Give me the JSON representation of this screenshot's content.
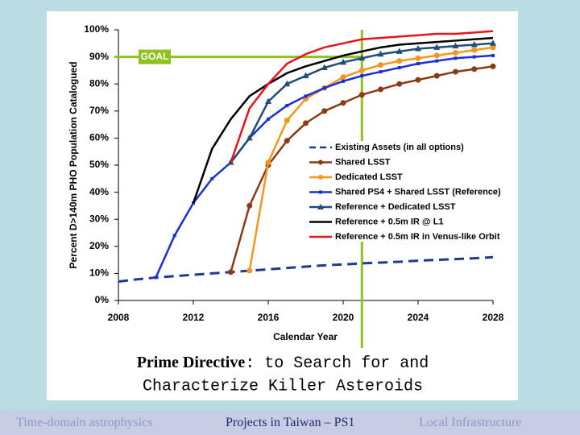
{
  "chart_data": {
    "type": "line",
    "y_label": "Percent D>140m PHO Population Catalogued",
    "x_label": "Calendar Year",
    "x": [
      2008,
      2009,
      2010,
      2011,
      2012,
      2013,
      2014,
      2015,
      2016,
      2017,
      2018,
      2019,
      2020,
      2021,
      2022,
      2023,
      2024,
      2025,
      2026,
      2027,
      2028
    ],
    "xlim": [
      2008,
      2028
    ],
    "xticks": [
      2008,
      2012,
      2016,
      2020,
      2024,
      2028
    ],
    "ylim": [
      0,
      100
    ],
    "yticks": [
      {
        "value": 0,
        "label": "0%"
      },
      {
        "value": 10,
        "label": "10%"
      },
      {
        "value": 20,
        "label": "20%"
      },
      {
        "value": 30,
        "label": "30%"
      },
      {
        "value": 40,
        "label": "40%"
      },
      {
        "value": 50,
        "label": "50%"
      },
      {
        "value": 60,
        "label": "60%"
      },
      {
        "value": 70,
        "label": "70%"
      },
      {
        "value": 80,
        "label": "80%"
      },
      {
        "value": 90,
        "label": "90%"
      },
      {
        "value": 100,
        "label": "100%"
      }
    ],
    "grid": false,
    "goal": {
      "label": "GOAL",
      "value": 90,
      "year": 2021,
      "color": "#8dc21f"
    },
    "series": [
      {
        "name": "Existing Assets (in all options)",
        "color": "#1f3a93",
        "dash": true,
        "marker": "none",
        "values": [
          7,
          7.8,
          8.5,
          9,
          9.5,
          10,
          10.5,
          11,
          11.5,
          12,
          12.5,
          13,
          13.3,
          13.7,
          14,
          14.3,
          14.7,
          15,
          15.3,
          15.6,
          16
        ]
      },
      {
        "name": "Shared LSST",
        "color": "#8b3a12",
        "dash": false,
        "marker": "circle",
        "values": [
          null,
          null,
          null,
          null,
          null,
          null,
          10.5,
          35,
          50,
          59,
          65.5,
          70,
          73,
          76,
          78,
          80,
          81.5,
          83,
          84.5,
          85.5,
          86.5
        ]
      },
      {
        "name": "Dedicated LSST",
        "color": "#f7941d",
        "dash": false,
        "marker": "circle",
        "values": [
          null,
          null,
          null,
          null,
          null,
          null,
          null,
          11,
          51,
          66.5,
          74.5,
          78.5,
          82.5,
          85,
          87,
          88.5,
          89.5,
          90.5,
          91.5,
          92.5,
          93.5
        ]
      },
      {
        "name": "Shared PS4 + Shared LSST (Reference)",
        "color": "#1a2fd6",
        "dash": false,
        "marker": "dot",
        "values": [
          null,
          null,
          8.5,
          24,
          36,
          45,
          51,
          60,
          67,
          72,
          75.5,
          78.5,
          81,
          83,
          84.5,
          86,
          87.5,
          88.5,
          89.5,
          90,
          90.5
        ]
      },
      {
        "name": "Reference + Dedicated LSST",
        "color": "#1f4e79",
        "dash": false,
        "marker": "triangle",
        "values": [
          null,
          null,
          null,
          null,
          null,
          null,
          51,
          60,
          73.5,
          80,
          83,
          86,
          88,
          89.5,
          91,
          92,
          93,
          93.5,
          94,
          94.5,
          95
        ]
      },
      {
        "name": "Reference + 0.5m IR @ L1",
        "color": "#000000",
        "dash": false,
        "marker": "none",
        "values": [
          null,
          null,
          null,
          null,
          36,
          56,
          67,
          75.5,
          80,
          84,
          86.5,
          88.5,
          90.5,
          92,
          93.5,
          94.5,
          95,
          95.5,
          96,
          96.5,
          97
        ]
      },
      {
        "name": "Reference + 0.5m IR in Venus-like Orbit",
        "color": "#e8121b",
        "dash": false,
        "marker": "none",
        "values": [
          null,
          null,
          null,
          null,
          null,
          null,
          51,
          71,
          80,
          87.5,
          91,
          93.5,
          95,
          96.5,
          97,
          97.5,
          98,
          98.5,
          98.5,
          99,
          99.5
        ]
      }
    ]
  },
  "caption": {
    "bold": "Prime Directive",
    "rest": ": to Search for and",
    "line2": "Characterize Killer Asteroids"
  },
  "footer": {
    "items": [
      "Time-domain astrophysics",
      "Projects in Taiwan – PS1",
      "Local Infrastructure"
    ]
  }
}
